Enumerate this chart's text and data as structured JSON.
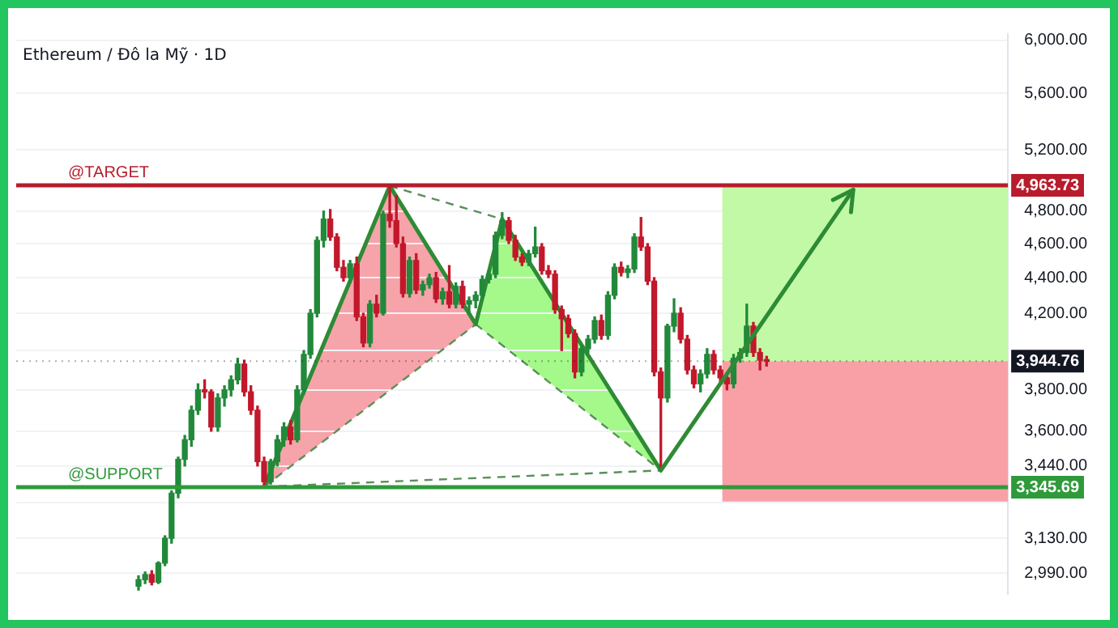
{
  "chart_data": {
    "type": "candlestick",
    "title": "Ethereum / Đô la Mỹ · 1D",
    "tick_labels": "y",
    "grid": "y",
    "legend": false,
    "log": "y",
    "marker": "none",
    "categories": [
      null,
      null,
      null,
      null,
      null,
      null,
      null,
      null,
      null,
      null,
      null,
      null,
      null,
      null,
      null,
      null,
      null,
      null,
      null,
      null,
      null,
      null,
      null,
      null,
      null,
      null,
      null,
      null,
      null,
      null,
      null,
      null,
      null,
      null,
      null,
      null,
      null,
      null,
      null,
      null,
      null,
      null,
      null,
      null,
      null,
      null,
      null,
      null,
      null,
      null,
      null,
      null,
      null,
      null,
      null,
      null,
      null,
      null,
      null,
      null,
      null,
      null,
      null,
      null,
      null,
      null,
      null,
      null,
      null,
      null,
      null,
      null,
      null,
      null,
      null,
      null,
      null,
      null,
      null,
      null,
      null,
      null,
      null,
      null,
      null,
      null,
      null,
      null,
      null,
      null,
      null,
      null,
      null,
      null,
      null,
      null,
      null,
      null,
      null,
      null,
      null,
      null,
      null,
      null,
      null,
      null,
      null,
      null,
      null,
      null,
      null,
      null,
      null,
      null,
      null,
      null,
      null,
      null,
      null,
      null,
      null,
      null,
      null,
      null,
      null,
      null,
      null,
      null,
      null,
      null,
      null,
      null,
      null,
      null,
      null,
      null,
      null,
      null,
      null,
      null,
      null,
      null,
      null,
      null,
      null,
      null,
      null,
      null,
      null,
      null
    ],
    "ohlc": [
      null,
      null,
      null,
      null,
      null,
      null,
      null,
      null,
      null,
      null,
      null,
      null,
      null,
      null,
      null,
      null,
      null,
      null,
      [
        2940,
        2980,
        2925,
        2965
      ],
      [
        2965,
        2995,
        2950,
        2985
      ],
      [
        2985,
        3000,
        2945,
        2955
      ],
      [
        2955,
        3035,
        2950,
        3030
      ],
      [
        3030,
        3140,
        3020,
        3130
      ],
      [
        3130,
        3330,
        3110,
        3320
      ],
      [
        3320,
        3480,
        3300,
        3470
      ],
      [
        3470,
        3580,
        3440,
        3560
      ],
      [
        3560,
        3720,
        3530,
        3700
      ],
      [
        3700,
        3830,
        3680,
        3800
      ],
      [
        3800,
        3850,
        3760,
        3790
      ],
      [
        3790,
        3800,
        3600,
        3620
      ],
      [
        3620,
        3780,
        3600,
        3760
      ],
      [
        3760,
        3820,
        3720,
        3800
      ],
      [
        3800,
        3870,
        3770,
        3850
      ],
      [
        3850,
        3960,
        3830,
        3930
      ],
      [
        3930,
        3950,
        3770,
        3790
      ],
      [
        3790,
        3820,
        3680,
        3700
      ],
      [
        3700,
        3720,
        3440,
        3460
      ],
      [
        3460,
        3480,
        3350,
        3370
      ],
      [
        3370,
        3470,
        3360,
        3460
      ],
      [
        3460,
        3580,
        3440,
        3560
      ],
      [
        3560,
        3640,
        3530,
        3620
      ],
      [
        3620,
        3650,
        3540,
        3560
      ],
      [
        3560,
        3820,
        3550,
        3800
      ],
      [
        3800,
        4000,
        3780,
        3980
      ],
      [
        3980,
        4220,
        3960,
        4200
      ],
      [
        4200,
        4640,
        4180,
        4620
      ],
      [
        4620,
        4800,
        4580,
        4750
      ],
      [
        4750,
        4810,
        4620,
        4640
      ],
      [
        4640,
        4660,
        4440,
        4460
      ],
      [
        4460,
        4500,
        4380,
        4400
      ],
      [
        4400,
        4500,
        4370,
        4480
      ],
      [
        4480,
        4520,
        4160,
        4180
      ],
      [
        4180,
        4200,
        4020,
        4040
      ],
      [
        4040,
        4270,
        4020,
        4250
      ],
      [
        4250,
        4300,
        4180,
        4200
      ],
      [
        4200,
        4800,
        4190,
        4780
      ],
      [
        4780,
        4960,
        4700,
        4740
      ],
      [
        4740,
        4900,
        4580,
        4600
      ],
      [
        4600,
        4640,
        4290,
        4310
      ],
      [
        4310,
        4520,
        4290,
        4500
      ],
      [
        4500,
        4540,
        4310,
        4330
      ],
      [
        4330,
        4380,
        4300,
        4360
      ],
      [
        4360,
        4420,
        4340,
        4400
      ],
      [
        4400,
        4430,
        4260,
        4280
      ],
      [
        4280,
        4340,
        4250,
        4320
      ],
      [
        4320,
        4470,
        4230,
        4250
      ],
      [
        4250,
        4370,
        4230,
        4350
      ],
      [
        4350,
        4380,
        4230,
        4250
      ],
      [
        4250,
        4290,
        4200,
        4270
      ],
      [
        4270,
        4320,
        4230,
        4300
      ],
      [
        4300,
        4410,
        4280,
        4390
      ],
      [
        4390,
        4440,
        4370,
        4420
      ],
      [
        4420,
        4670,
        4400,
        4650
      ],
      [
        4650,
        4790,
        4630,
        4740
      ],
      [
        4740,
        4760,
        4600,
        4620
      ],
      [
        4620,
        4650,
        4500,
        4520
      ],
      [
        4520,
        4540,
        4470,
        4490
      ],
      [
        4490,
        4560,
        4470,
        4540
      ],
      [
        4540,
        4700,
        4520,
        4580
      ],
      [
        4580,
        4600,
        4420,
        4440
      ],
      [
        4440,
        4470,
        4400,
        4420
      ],
      [
        4420,
        4440,
        4200,
        4220
      ],
      [
        4220,
        4240,
        4000,
        4170
      ],
      [
        4170,
        4190,
        4070,
        4090
      ],
      [
        4090,
        4110,
        3860,
        3890
      ],
      [
        3890,
        4030,
        3870,
        4010
      ],
      [
        4010,
        4080,
        3990,
        4060
      ],
      [
        4060,
        4180,
        4040,
        4160
      ],
      [
        4160,
        4190,
        4060,
        4080
      ],
      [
        4080,
        4320,
        4060,
        4300
      ],
      [
        4300,
        4480,
        4280,
        4460
      ],
      [
        4460,
        4490,
        4410,
        4430
      ],
      [
        4430,
        4470,
        4400,
        4450
      ],
      [
        4450,
        4660,
        4430,
        4640
      ],
      [
        4640,
        4760,
        4560,
        4580
      ],
      [
        4580,
        4600,
        4360,
        4380
      ],
      [
        4380,
        4400,
        3870,
        3890
      ],
      [
        3890,
        3910,
        3420,
        3760
      ],
      [
        3760,
        4140,
        3740,
        4130
      ],
      [
        4130,
        4280,
        4100,
        4200
      ],
      [
        4200,
        4230,
        4040,
        4060
      ],
      [
        4060,
        4080,
        3880,
        3900
      ],
      [
        3900,
        3920,
        3810,
        3830
      ],
      [
        3830,
        3900,
        3790,
        3880
      ],
      [
        3880,
        4010,
        3860,
        3980
      ],
      [
        3980,
        4000,
        3880,
        3900
      ],
      [
        3900,
        3920,
        3840,
        3860
      ],
      [
        3860,
        3880,
        3800,
        3830
      ],
      [
        3830,
        3980,
        3810,
        3960
      ],
      [
        3960,
        4010,
        3940,
        3990
      ],
      [
        3990,
        4250,
        3970,
        4130
      ],
      [
        4130,
        4150,
        3970,
        3990
      ],
      [
        3990,
        4010,
        3900,
        3950
      ],
      [
        3950,
        3970,
        3920,
        3944.76
      ],
      null,
      null,
      null,
      null,
      null,
      null,
      null,
      null,
      null,
      null,
      null,
      null,
      null,
      null,
      null,
      null,
      null,
      null,
      null,
      null,
      null,
      null,
      null,
      null,
      null,
      null,
      null,
      null,
      null,
      null,
      null,
      null,
      null,
      null,
      null,
      null
    ],
    "series": [
      {
        "type": "line",
        "color": "#2e8b35",
        "line_style": "solid",
        "values": [
          null,
          null,
          null,
          null,
          null,
          null,
          null,
          null,
          null,
          null,
          null,
          null,
          null,
          null,
          null,
          null,
          null,
          null,
          null,
          null,
          null,
          null,
          null,
          null,
          null,
          null,
          null,
          null,
          null,
          null,
          null,
          null,
          null,
          null,
          null,
          null,
          null,
          3348,
          null,
          null,
          null,
          null,
          null,
          null,
          null,
          null,
          null,
          null,
          null,
          null,
          null,
          null,
          null,
          null,
          null,
          null,
          4960,
          null,
          null,
          null,
          null,
          null,
          null,
          null,
          null,
          null,
          null,
          null,
          null,
          4140,
          null,
          null,
          null,
          4750,
          null,
          null,
          null,
          null,
          null,
          null,
          null,
          null,
          null,
          null,
          null,
          null,
          null,
          null,
          null,
          null,
          null,
          null,
          null,
          null,
          null,
          null,
          null,
          3420,
          null,
          null,
          null,
          null,
          null,
          null,
          null,
          null,
          null,
          null,
          null,
          null,
          null,
          null,
          null,
          null,
          null,
          null,
          null,
          null,
          null,
          null,
          null,
          null,
          null,
          null,
          null,
          null,
          null,
          null,
          null,
          null,
          null,
          null,
          null,
          null,
          null,
          null,
          null,
          null,
          null,
          null,
          null,
          null,
          null,
          null,
          null,
          null,
          null,
          null,
          null,
          null
        ]
      },
      {
        "type": "line",
        "color": "#5a8f5a",
        "line_style": "dashed",
        "values": [
          null,
          null,
          null,
          null,
          null,
          null,
          null,
          null,
          null,
          null,
          null,
          null,
          null,
          null,
          null,
          null,
          null,
          null,
          null,
          null,
          null,
          null,
          null,
          null,
          null,
          null,
          null,
          null,
          null,
          null,
          null,
          null,
          null,
          null,
          null,
          null,
          null,
          3348,
          null,
          null,
          null,
          null,
          null,
          null,
          null,
          null,
          null,
          null,
          null,
          null,
          null,
          null,
          null,
          null,
          null,
          null,
          null,
          null,
          null,
          null,
          null,
          null,
          null,
          null,
          null,
          null,
          null,
          null,
          null,
          4140,
          null,
          null,
          null,
          null,
          null,
          null,
          null,
          null,
          null,
          null,
          null,
          null,
          null,
          null,
          null,
          null,
          null,
          null,
          null,
          null,
          null,
          null,
          null,
          null,
          null,
          null,
          null,
          null,
          null,
          null,
          null,
          null,
          null,
          null,
          null,
          null,
          null,
          null,
          null,
          null,
          null,
          null,
          null,
          null,
          null,
          null,
          null,
          null,
          null,
          null,
          null,
          null,
          null,
          null,
          null,
          null,
          null,
          null,
          null,
          null,
          null,
          null,
          null,
          null,
          null,
          null,
          null,
          null,
          null,
          null,
          null,
          null,
          null,
          null,
          null,
          null,
          null,
          null,
          null,
          null
        ]
      },
      {
        "type": "line",
        "color": "#5a8f5a",
        "line_style": "dashed",
        "values": [
          null,
          null,
          null,
          null,
          null,
          null,
          null,
          null,
          null,
          null,
          null,
          null,
          null,
          null,
          null,
          null,
          null,
          null,
          null,
          null,
          null,
          null,
          null,
          null,
          null,
          null,
          null,
          null,
          null,
          null,
          null,
          null,
          null,
          null,
          null,
          null,
          null,
          null,
          null,
          null,
          null,
          null,
          null,
          null,
          null,
          null,
          null,
          null,
          null,
          null,
          null,
          null,
          null,
          null,
          null,
          null,
          4960,
          null,
          null,
          null,
          null,
          null,
          null,
          null,
          null,
          null,
          null,
          null,
          null,
          null,
          null,
          null,
          null,
          4750,
          null,
          null,
          null,
          null,
          null,
          null,
          null,
          null,
          null,
          null,
          null,
          null,
          null,
          null,
          null,
          null,
          null,
          null,
          null,
          null,
          null,
          null,
          null,
          null,
          null,
          null,
          null,
          null,
          null,
          null,
          null,
          null,
          null,
          null,
          null,
          null,
          null,
          null,
          null,
          null,
          null,
          null,
          null,
          null,
          null,
          null,
          null,
          null,
          null,
          null,
          null,
          null,
          null,
          null,
          null,
          null,
          null,
          null,
          null,
          null,
          null,
          null,
          null,
          null,
          null,
          null,
          null,
          null,
          null,
          null,
          null,
          null,
          null,
          null,
          null,
          null
        ]
      },
      {
        "type": "line",
        "color": "#5a8f5a",
        "line_style": "dashed",
        "values": [
          null,
          null,
          null,
          null,
          null,
          null,
          null,
          null,
          null,
          null,
          null,
          null,
          null,
          null,
          null,
          null,
          null,
          null,
          null,
          null,
          null,
          null,
          null,
          null,
          null,
          null,
          null,
          null,
          null,
          null,
          null,
          null,
          null,
          null,
          null,
          null,
          null,
          null,
          null,
          null,
          null,
          null,
          null,
          null,
          null,
          null,
          null,
          null,
          null,
          null,
          null,
          null,
          null,
          null,
          null,
          null,
          null,
          null,
          null,
          null,
          null,
          null,
          null,
          null,
          null,
          null,
          null,
          null,
          null,
          4140,
          null,
          null,
          null,
          null,
          null,
          null,
          null,
          null,
          null,
          null,
          null,
          null,
          null,
          null,
          null,
          null,
          null,
          null,
          null,
          null,
          null,
          null,
          null,
          null,
          null,
          null,
          null,
          3420,
          null,
          null,
          null,
          null,
          null,
          null,
          null,
          null,
          null,
          null,
          null,
          null,
          null,
          null,
          null,
          null,
          null,
          null,
          null,
          null,
          null,
          null,
          null,
          null,
          null,
          null,
          null,
          null,
          null,
          null,
          null,
          null,
          null,
          null,
          null,
          null,
          null,
          null,
          null,
          null,
          null,
          null,
          null,
          null,
          null,
          null,
          null,
          null,
          null,
          null,
          null,
          null
        ]
      },
      {
        "type": "line",
        "color": "#5a8f5a",
        "line_style": "dashed",
        "values": [
          null,
          null,
          null,
          null,
          null,
          null,
          null,
          null,
          null,
          null,
          null,
          null,
          null,
          null,
          null,
          null,
          null,
          null,
          null,
          null,
          null,
          null,
          null,
          null,
          null,
          null,
          null,
          null,
          null,
          null,
          null,
          null,
          null,
          null,
          null,
          null,
          null,
          3348,
          null,
          null,
          null,
          null,
          null,
          null,
          null,
          null,
          null,
          null,
          null,
          null,
          null,
          null,
          null,
          null,
          null,
          null,
          null,
          null,
          null,
          null,
          null,
          null,
          null,
          null,
          null,
          null,
          null,
          null,
          null,
          null,
          null,
          null,
          null,
          null,
          null,
          null,
          null,
          null,
          null,
          null,
          null,
          null,
          null,
          null,
          null,
          null,
          null,
          null,
          null,
          null,
          null,
          null,
          null,
          null,
          null,
          null,
          null,
          3420,
          null,
          null,
          null,
          null,
          null,
          null,
          null,
          null,
          null,
          null,
          null,
          null,
          null,
          null,
          null,
          null,
          null,
          null,
          null,
          null,
          null,
          null,
          null,
          null,
          null,
          null,
          null,
          null,
          null,
          null,
          null,
          null,
          null,
          null,
          null,
          null,
          null,
          null,
          null,
          null,
          null,
          null,
          null,
          null,
          null,
          null,
          null,
          null,
          null,
          null,
          null,
          null
        ]
      }
    ],
    "ylim": [
      2910,
      6050
    ],
    "yticks": [
      {
        "value": 2990,
        "label": "2,990.00"
      },
      {
        "value": 3130,
        "label": "3,130.00"
      },
      {
        "value": 3280,
        "label": null
      },
      {
        "value": 3440,
        "label": "3,440.00"
      },
      {
        "value": 3600,
        "label": "3,600.00"
      },
      {
        "value": 3800,
        "label": "3,800.00"
      },
      {
        "value": 4000,
        "label": null
      },
      {
        "value": 4200,
        "label": "4,200.00"
      },
      {
        "value": 4400,
        "label": "4,400.00"
      },
      {
        "value": 4600,
        "label": "4,600.00"
      },
      {
        "value": 4800,
        "label": "4,800.00"
      },
      {
        "value": 5200,
        "label": "5,200.00"
      },
      {
        "value": 5600,
        "label": "5,600.00"
      },
      {
        "value": 6000,
        "label": "6,000.00"
      }
    ],
    "annotations": [
      "4,963.73",
      "3,345.69",
      "3,944.76"
    ],
    "ref_lines": [
      {
        "axis": "y",
        "value": 4963.73,
        "label": "@TARGET",
        "color": "#b71c2c"
      },
      {
        "axis": "y",
        "value": 3345.69,
        "label": "@SUPPORT",
        "color": "#2e9a3a"
      },
      {
        "axis": "y",
        "value": 3944.76,
        "color": "#131722",
        "line_style": "dotted"
      }
    ],
    "bands": [
      {
        "axis": "y",
        "from": 3944.76,
        "to": 4963.73,
        "color": "#c2f9a6"
      },
      {
        "axis": "y",
        "from": 3284,
        "to": 3944.76,
        "color": "#f9a0a6"
      }
    ]
  }
}
